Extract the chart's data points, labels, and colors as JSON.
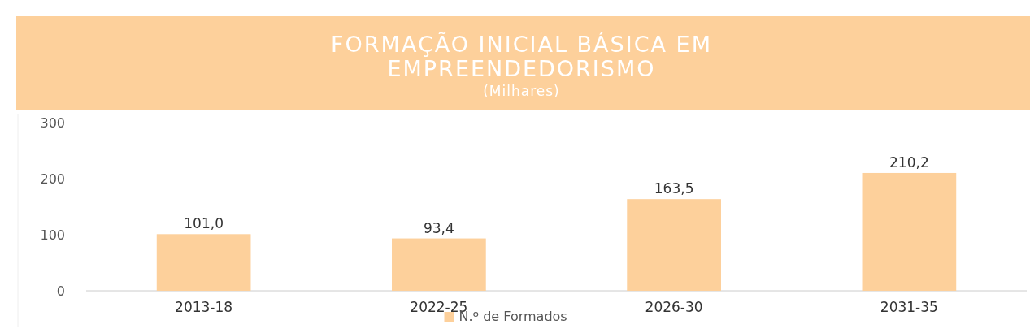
{
  "chart_data": {
    "type": "bar",
    "title": "FORMAÇÃO INICIAL BÁSICA EM EMPREENDEDORISMO",
    "subtitle": "(Milhares)",
    "categories": [
      "2013-18",
      "2022-25",
      "2026-30",
      "2031-35"
    ],
    "series": [
      {
        "name": "N.º de Formados",
        "color": "#fdd09b",
        "values": [
          101.0,
          93.4,
          163.5,
          210.2
        ],
        "value_labels": [
          "101,0",
          "93,4",
          "163,5",
          "210,2"
        ]
      }
    ],
    "ylim": [
      0,
      300
    ],
    "yticks": [
      0,
      100,
      200,
      300
    ],
    "grid": false,
    "legend": "bottom"
  }
}
